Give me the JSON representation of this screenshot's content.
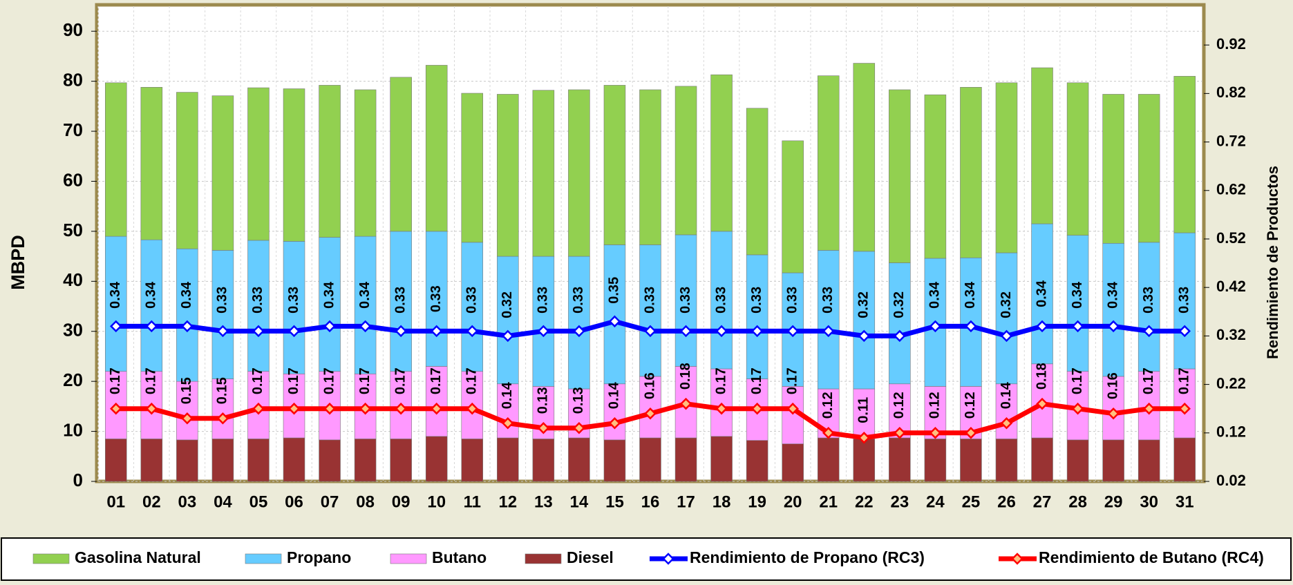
{
  "chart_data": {
    "type": "bar-line",
    "y_axis_label": "MBPD",
    "y2_axis_label": "Rendimiento de Productos",
    "categories": [
      "01",
      "02",
      "03",
      "04",
      "05",
      "06",
      "07",
      "08",
      "09",
      "10",
      "11",
      "12",
      "13",
      "14",
      "15",
      "16",
      "17",
      "18",
      "19",
      "20",
      "21",
      "22",
      "23",
      "24",
      "25",
      "26",
      "27",
      "28",
      "29",
      "30",
      "31"
    ],
    "ylim": [
      0,
      95
    ],
    "yticks": [
      0,
      10,
      20,
      30,
      40,
      50,
      60,
      70,
      80,
      90
    ],
    "y2lim": [
      0.02,
      1.0
    ],
    "y2ticks": [
      0.02,
      0.12,
      0.22,
      0.32,
      0.42,
      0.52,
      0.62,
      0.72,
      0.82,
      0.92
    ],
    "grid": true,
    "legend": "bottom",
    "series": [
      {
        "name": "Gasolina Natural",
        "kind": "bar",
        "color": "#92d050",
        "values": [
          30.7,
          30.5,
          31.3,
          30.9,
          30.5,
          30.5,
          30.4,
          29.3,
          30.8,
          33.2,
          29.8,
          32.4,
          33.2,
          33.3,
          31.9,
          31,
          29.7,
          31.3,
          29.3,
          26.4,
          34.9,
          37.6,
          34.6,
          32.7,
          34.1,
          34,
          31.2,
          30.5,
          29.8,
          29.6,
          31.3
        ]
      },
      {
        "name": "Propano",
        "kind": "bar",
        "color": "#66ccff",
        "values": [
          27,
          26.3,
          26.5,
          25.7,
          26.2,
          26.5,
          26.8,
          27.5,
          28,
          27,
          25.8,
          25.5,
          26,
          26.5,
          27.8,
          26.3,
          26.3,
          27.5,
          24.8,
          22.7,
          27.7,
          27.5,
          24.2,
          25.6,
          25.7,
          26.2,
          28,
          27.2,
          26.6,
          25.8,
          27.2
        ]
      },
      {
        "name": "Butano",
        "kind": "bar",
        "color": "#ff99ff",
        "values": [
          13.5,
          13.5,
          11.7,
          12,
          13.5,
          12.8,
          13.7,
          13,
          13.5,
          14,
          13.5,
          10.8,
          10.5,
          9.8,
          11.2,
          12.3,
          14.3,
          13.5,
          12.3,
          11.5,
          9.8,
          10,
          10.8,
          10.5,
          10.5,
          11,
          14.8,
          13.7,
          12.7,
          13.7,
          13.8
        ]
      },
      {
        "name": "Diesel",
        "kind": "bar",
        "color": "#993333",
        "values": [
          8.5,
          8.5,
          8.3,
          8.5,
          8.5,
          8.7,
          8.3,
          8.5,
          8.5,
          9,
          8.5,
          8.7,
          8.5,
          8.7,
          8.3,
          8.7,
          8.7,
          9,
          8.2,
          7.5,
          8.7,
          8.5,
          8.7,
          8.5,
          8.5,
          8.5,
          8.7,
          8.3,
          8.3,
          8.3,
          8.7
        ]
      },
      {
        "name": "Rendimiento de Propano (RC3)",
        "kind": "line",
        "axis": "y2",
        "color": "#0000ff",
        "marker_fill": "#ffffff",
        "values": [
          0.34,
          0.34,
          0.34,
          0.33,
          0.33,
          0.33,
          0.34,
          0.34,
          0.33,
          0.33,
          0.33,
          0.32,
          0.33,
          0.33,
          0.35,
          0.33,
          0.33,
          0.33,
          0.33,
          0.33,
          0.33,
          0.32,
          0.32,
          0.34,
          0.34,
          0.32,
          0.34,
          0.34,
          0.34,
          0.33,
          0.33
        ]
      },
      {
        "name": "Rendimiento de Butano (RC4)",
        "kind": "line",
        "axis": "y2",
        "color": "#ff0000",
        "marker_fill": "#ffc080",
        "values": [
          0.17,
          0.17,
          0.15,
          0.15,
          0.17,
          0.17,
          0.17,
          0.17,
          0.17,
          0.17,
          0.17,
          0.14,
          0.13,
          0.13,
          0.14,
          0.16,
          0.18,
          0.17,
          0.17,
          0.17,
          0.12,
          0.11,
          0.12,
          0.12,
          0.12,
          0.14,
          0.18,
          0.17,
          0.16,
          0.17,
          0.17
        ]
      }
    ]
  }
}
